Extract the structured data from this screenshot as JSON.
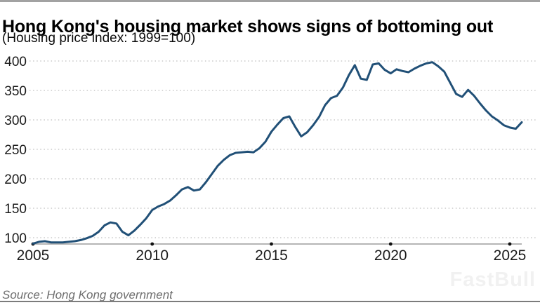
{
  "header": {
    "title": "Hong Kong's housing market shows signs of bottoming out",
    "subtitle": "(Housing price index: 1999=100)"
  },
  "footer": {
    "source": "Source: Hong Kong government",
    "watermark": "FastBull"
  },
  "colors": {
    "line": "#215077",
    "grid": "#c9c9c9",
    "axis": "#b5b5b5",
    "tickdot": "#111111",
    "text": "#1a1a1a",
    "muted": "#6e6e6e",
    "watermark": "#f1f1f1",
    "topbar": "#a2a2a2",
    "bottombar": "#7c7c7c"
  },
  "chart_data": {
    "type": "line",
    "title": "Hong Kong's housing market shows signs of bottoming out",
    "subtitle": "(Housing price index: 1999=100)",
    "series_name": "Housing price index (1999=100)",
    "source": "Source: Hong Kong government",
    "grid": "dotted horizontal gridlines",
    "legend": "none",
    "xlim": [
      2005,
      2025.6
    ],
    "ylim": [
      88,
      410
    ],
    "xticks": [
      2005,
      2010,
      2015,
      2020,
      2025
    ],
    "yticks": [
      100,
      150,
      200,
      250,
      300,
      350,
      400
    ],
    "x": [
      2005.0,
      2005.25,
      2005.5,
      2005.75,
      2006.0,
      2006.25,
      2006.5,
      2006.75,
      2007.0,
      2007.25,
      2007.5,
      2007.75,
      2008.0,
      2008.25,
      2008.5,
      2008.75,
      2009.0,
      2009.25,
      2009.5,
      2009.75,
      2010.0,
      2010.25,
      2010.5,
      2010.75,
      2011.0,
      2011.25,
      2011.5,
      2011.75,
      2012.0,
      2012.25,
      2012.5,
      2012.75,
      2013.0,
      2013.25,
      2013.5,
      2013.75,
      2014.0,
      2014.25,
      2014.5,
      2014.75,
      2015.0,
      2015.25,
      2015.5,
      2015.75,
      2016.0,
      2016.25,
      2016.5,
      2016.75,
      2017.0,
      2017.25,
      2017.5,
      2017.75,
      2018.0,
      2018.25,
      2018.5,
      2018.75,
      2019.0,
      2019.25,
      2019.5,
      2019.75,
      2020.0,
      2020.25,
      2020.5,
      2020.75,
      2021.0,
      2021.25,
      2021.5,
      2021.75,
      2022.0,
      2022.25,
      2022.5,
      2022.75,
      2023.0,
      2023.25,
      2023.5,
      2023.75,
      2024.0,
      2024.25,
      2024.5,
      2024.75,
      2025.0,
      2025.25,
      2025.5
    ],
    "values": [
      90,
      93,
      94,
      92,
      92,
      92,
      93,
      94,
      96,
      99,
      103,
      110,
      121,
      126,
      124,
      110,
      104,
      112,
      122,
      133,
      147,
      153,
      157,
      163,
      172,
      182,
      186,
      180,
      182,
      194,
      208,
      222,
      232,
      240,
      244,
      245,
      246,
      245,
      252,
      263,
      280,
      292,
      303,
      306,
      288,
      272,
      279,
      291,
      305,
      325,
      337,
      341,
      355,
      376,
      393,
      370,
      368,
      394,
      396,
      385,
      379,
      386,
      383,
      381,
      387,
      392,
      396,
      398,
      391,
      382,
      363,
      344,
      339,
      351,
      341,
      328,
      316,
      306,
      299,
      291,
      287,
      285,
      296
    ]
  }
}
